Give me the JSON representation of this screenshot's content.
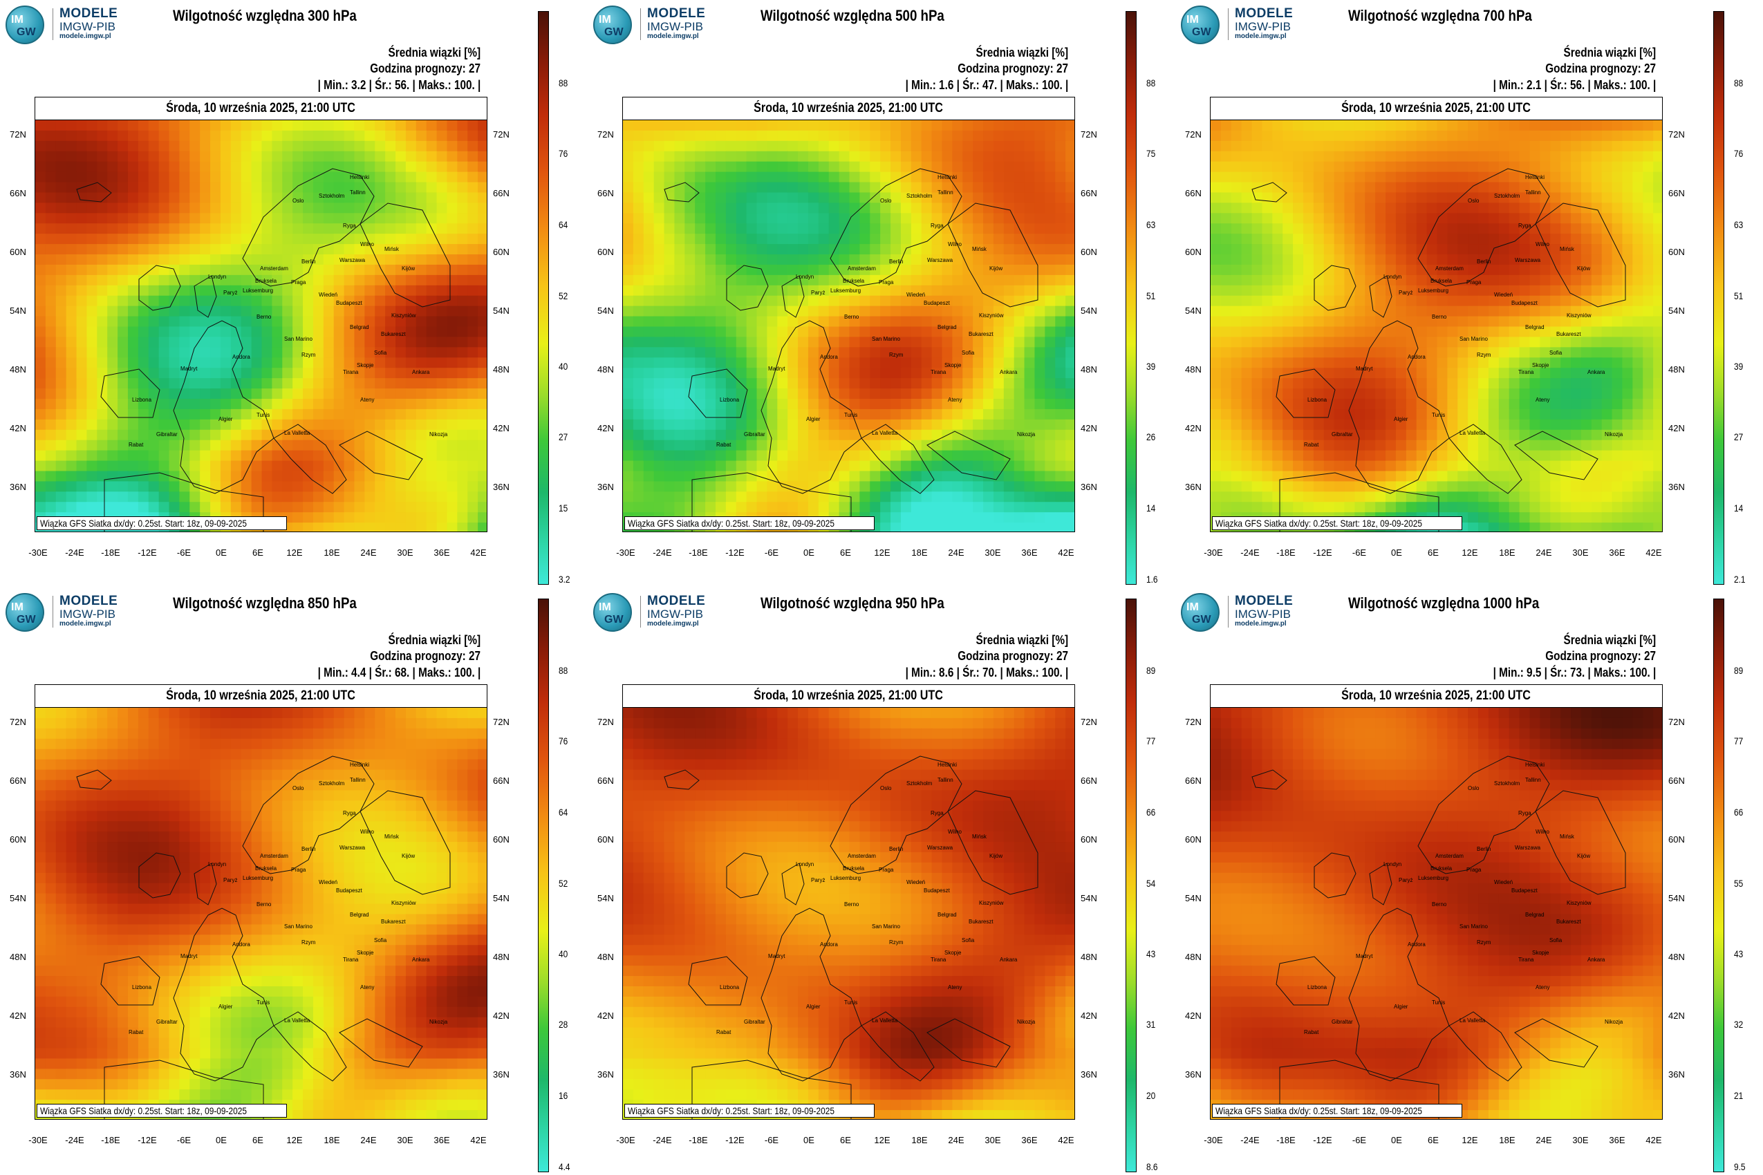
{
  "logo": {
    "line1": "MODELE",
    "line2": "IMGW-PIB",
    "line3": "modele.imgw.pl",
    "badge_top": "IM",
    "badge_bottom": "GW"
  },
  "shared": {
    "mean_label": "Średnia wiązki [%]",
    "forecast_hour": "Godzina prognozy: 27",
    "date": "Środa, 10 września 2025, 21:00 UTC",
    "footer": "Wiązka GFS Siatka dx/dy: 0.25st. Start: 18z, 09-09-2025",
    "lat_labels": [
      "72N",
      "66N",
      "60N",
      "54N",
      "48N",
      "42N",
      "36N"
    ],
    "lon_labels": [
      "-30E",
      "-24E",
      "-18E",
      "-12E",
      "-6E",
      "0E",
      "6E",
      "12E",
      "18E",
      "24E",
      "30E",
      "36E",
      "42E"
    ],
    "city_labels": [
      "Oslo",
      "Helsinki",
      "Sztokholm",
      "Tallinn",
      "Ryga",
      "Wilno",
      "Mińsk",
      "Warszawa",
      "Berlin",
      "Amsterdam",
      "Bruksela",
      "Londyn",
      "Paryż",
      "Luksemburg",
      "Praga",
      "Wiedeń",
      "Budapeszt",
      "Kijów",
      "Kiszyniów",
      "Bukareszt",
      "Belgrad",
      "Sofia",
      "Skopje",
      "Tirana",
      "Rzym",
      "Berno",
      "San Marino",
      "Andora",
      "Madryt",
      "Lizbona",
      "Algier",
      "Tunis",
      "La Valletta",
      "Ateny",
      "Ankara",
      "Nikozja",
      "Rabat",
      "Gibraltar"
    ]
  },
  "panels": [
    {
      "title": "Wilgotność względna 300 hPa",
      "stats": "| Min.:      3.2 | Śr.:      56. | Maks.:     100. |",
      "colorbar": [
        "88",
        "76",
        "64",
        "52",
        "40",
        "27",
        "15",
        "3.2"
      ]
    },
    {
      "title": "Wilgotność względna 500 hPa",
      "stats": "| Min.:      1.6 | Śr.:      47. | Maks.:     100. |",
      "colorbar": [
        "88",
        "75",
        "63",
        "51",
        "39",
        "26",
        "14",
        "1.6"
      ]
    },
    {
      "title": "Wilgotność względna 700 hPa",
      "stats": "| Min.:      2.1 | Śr.:      56. | Maks.:     100. |",
      "colorbar": [
        "88",
        "76",
        "63",
        "51",
        "39",
        "27",
        "14",
        "2.1"
      ]
    },
    {
      "title": "Wilgotność względna 850 hPa",
      "stats": "| Min.:      4.4 | Śr.:      68. | Maks.:     100. |",
      "colorbar": [
        "88",
        "76",
        "64",
        "52",
        "40",
        "28",
        "16",
        "4.4"
      ]
    },
    {
      "title": "Wilgotność względna 950 hPa",
      "stats": "| Min.:      8.6 | Śr.:      70. | Maks.:     100. |",
      "colorbar": [
        "89",
        "77",
        "66",
        "54",
        "43",
        "31",
        "20",
        "8.6"
      ]
    },
    {
      "title": "Wilgotność względna 1000 hPa",
      "stats": "| Min.:      9.5 | Śr.:      73. | Maks.:     100. |",
      "colorbar": [
        "89",
        "77",
        "66",
        "55",
        "43",
        "32",
        "21",
        "9.5"
      ]
    }
  ]
}
